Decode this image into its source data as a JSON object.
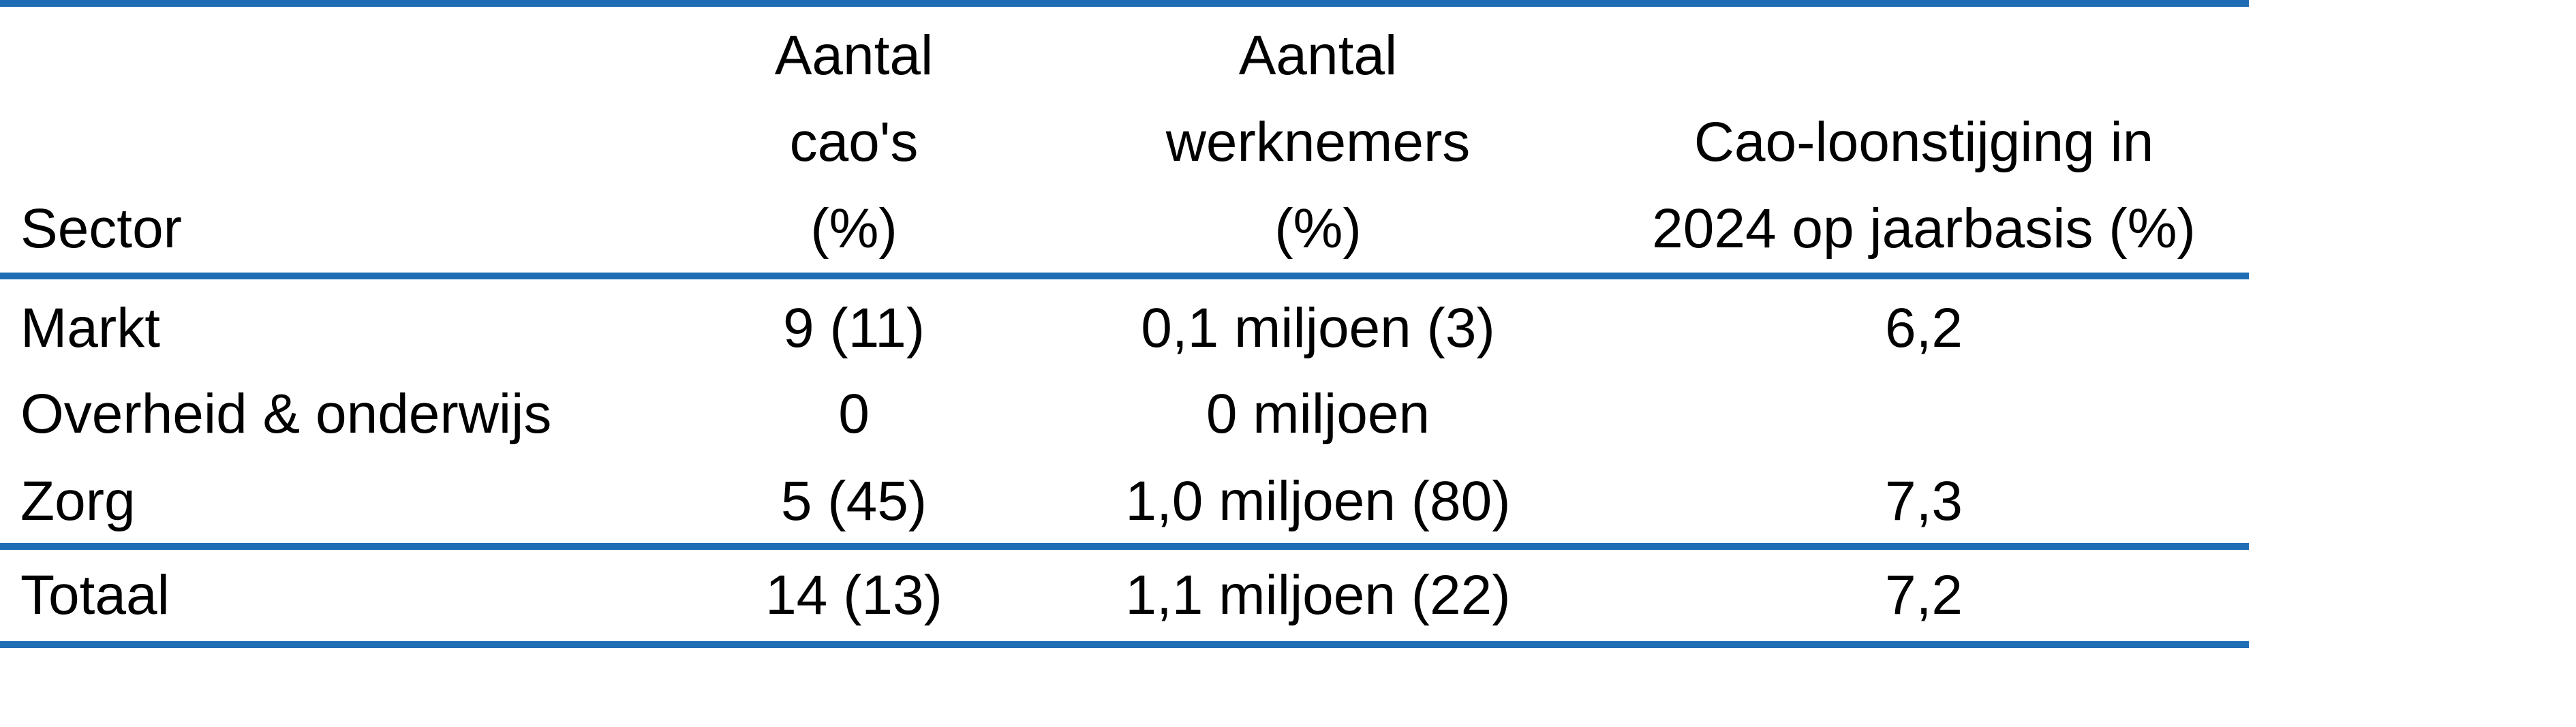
{
  "table": {
    "header": [
      [
        "Sector"
      ],
      [
        "Aantal",
        "cao's",
        "(%)"
      ],
      [
        "Aantal",
        "werknemers",
        "(%)"
      ],
      [
        "Cao-loonstijging in",
        "2024 op jaarbasis (%)"
      ]
    ],
    "rows": [
      [
        "Markt",
        "9 (11)",
        "0,1 miljoen (3)",
        "6,2"
      ],
      [
        "Overheid & onderwijs",
        "0",
        "0 miljoen",
        null
      ],
      [
        "Zorg",
        "5 (45)",
        "1,0 miljoen (80)",
        "7,3"
      ]
    ],
    "total": [
      "Totaal",
      "14 (13)",
      "1,1 miljoen (22)",
      "7,2"
    ]
  }
}
